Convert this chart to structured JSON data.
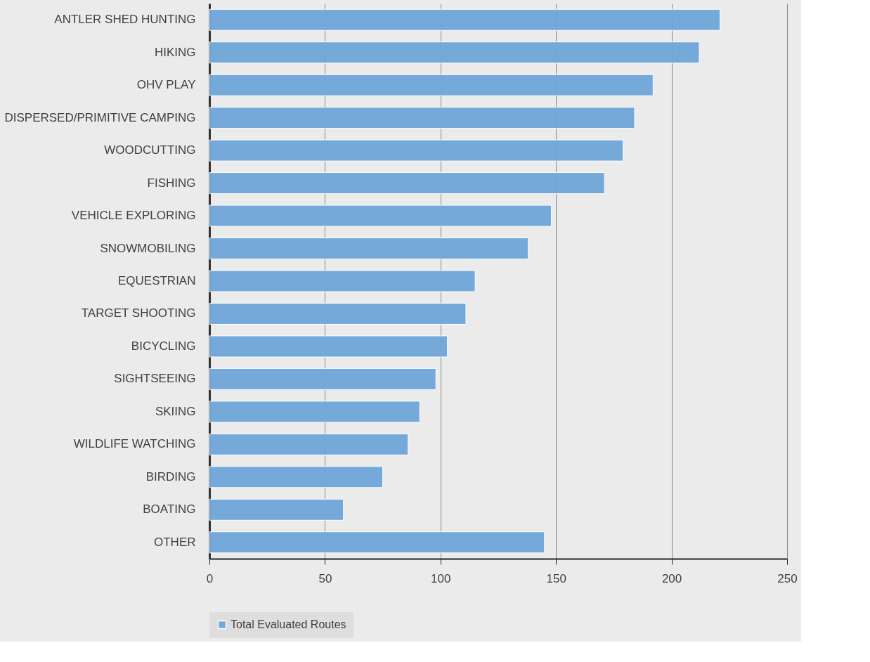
{
  "chart_data": {
    "type": "bar",
    "orientation": "horizontal",
    "categories": [
      "ANTLER SHED HUNTING",
      "HIKING",
      "OHV PLAY",
      "DISPERSED/PRIMITIVE CAMPING",
      "WOODCUTTING",
      "FISHING",
      "VEHICLE EXPLORING",
      "SNOWMOBILING",
      "EQUESTRIAN",
      "TARGET SHOOTING",
      "BICYCLING",
      "SIGHTSEEING",
      "SKIING",
      "WILDLIFE WATCHING",
      "BIRDING",
      "BOATING",
      "OTHER"
    ],
    "series": [
      {
        "name": "Total Evaluated Routes",
        "color": "#6fa6d9",
        "values": [
          221,
          212,
          192,
          184,
          179,
          171,
          148,
          138,
          115,
          111,
          103,
          98,
          91,
          86,
          75,
          58,
          145
        ]
      }
    ],
    "xlim": [
      0,
      250
    ],
    "xticks": [
      0,
      50,
      100,
      150,
      200,
      250
    ],
    "grid": "x",
    "legend": "bottom"
  }
}
